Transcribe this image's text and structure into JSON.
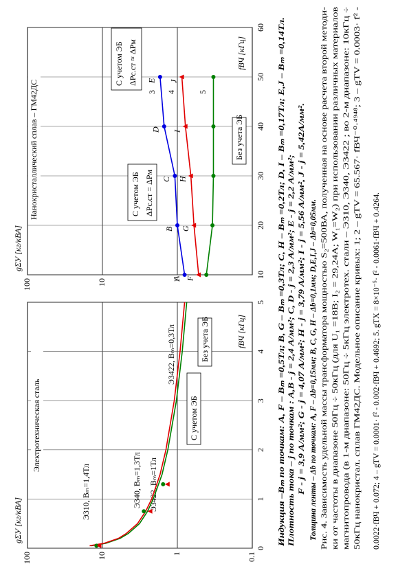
{
  "chart_data": [
    {
      "type": "line",
      "title": "Электротехническая сталь",
      "y_label": "gΣУ [кг/кВА]",
      "x_label": "fВЧ [кГц]",
      "xlim": [
        0,
        5
      ],
      "xticks": [
        0,
        1,
        2,
        3,
        4,
        5
      ],
      "ylim": [
        0.1,
        100
      ],
      "yticks": [
        0.1,
        1,
        10,
        100
      ],
      "log_y": true,
      "grid": true,
      "series": [
        {
          "color": "#008000",
          "line": true,
          "marker": "none",
          "x": [
            0.05,
            0.1,
            0.2,
            0.3,
            0.5,
            0.75,
            1,
            1.5,
            2,
            3,
            4,
            5
          ],
          "values": [
            14.0,
            9.0,
            5.8,
            4.5,
            3.2,
            2.5,
            2.1,
            1.6,
            1.34,
            1.03,
            0.86,
            0.75
          ]
        },
        {
          "color": "#e00000",
          "line": true,
          "marker": "none",
          "x": [
            0.05,
            0.1,
            0.2,
            0.3,
            0.5,
            0.75,
            1,
            1.5,
            2,
            3,
            4,
            5
          ],
          "values": [
            14.8,
            9.5,
            6.1,
            4.8,
            3.4,
            2.65,
            2.2,
            1.7,
            1.42,
            1.1,
            0.92,
            0.8
          ]
        },
        {
          "color": "#008000",
          "line": false,
          "marker": "circle",
          "x": [
            0.05,
            0.75,
            1.3
          ],
          "values": [
            12,
            2.8,
            1.55
          ]
        },
        {
          "color": "#e00000",
          "line": false,
          "marker": "triangle",
          "x": [
            0.05,
            0.75,
            1.3
          ],
          "values": [
            11,
            2.3,
            1.35
          ]
        }
      ],
      "annotations": [
        "Э310, Bₘ=1,4Тл",
        "Э340, Bₘ=1,3Тл",
        "Э3422, Bₘ=1Тл",
        "Э3422, Bₘ=0,3Тл",
        "С учетом ЭБ",
        "Без учета ЭБ"
      ]
    },
    {
      "type": "line",
      "title": "Нанокристаллический сплав – ГМ42ДС",
      "y_label": "gΣУ [кг/кВА]",
      "x_label": "fВЧ [кГц]",
      "xlim": [
        10,
        60
      ],
      "xticks": [
        10,
        20,
        30,
        40,
        50,
        60
      ],
      "ylim": [
        0.1,
        100
      ],
      "yticks": [
        1,
        10,
        100
      ],
      "log_y": true,
      "grid": true,
      "series": [
        {
          "color": "#0000e0",
          "line": true,
          "marker": "circle",
          "x": [
            10,
            20,
            30,
            40,
            50
          ],
          "values": [
            0.8,
            1.0,
            1.08,
            1.5,
            1.7
          ],
          "point_labels": [
            "A",
            "B",
            "C",
            "D",
            "E"
          ]
        },
        {
          "color": "#e00000",
          "line": true,
          "marker": "triangle",
          "x": [
            10,
            20,
            30,
            40,
            50
          ],
          "values": [
            0.52,
            0.6,
            0.66,
            0.78,
            0.87
          ],
          "point_labels": [
            "F",
            "G",
            "H",
            "I",
            "J"
          ]
        },
        {
          "color": "#008000",
          "line": true,
          "marker": "circle",
          "x": [
            10,
            20,
            30,
            40,
            50
          ],
          "values": [
            0.41,
            0.34,
            0.33,
            0.33,
            0.33
          ]
        }
      ],
      "annotations": [
        "С учетом ЭБ",
        "ΔPс.ст ≈ ΔPм",
        "С учетом ЭБ",
        "ΔPс.ст = ΔPм",
        "Без учета ЭБ",
        "3",
        "4",
        "5"
      ]
    }
  ],
  "caption": {
    "lines": [
      "Индукция –Bₘ по точкам: A, F – Bₘ =0,5Тл;  B, G – Bₘ =0,3Тл; C, H – Bₘ =0,2Тл; D, I – Bₘ =0,17Тл; E,J – Bₘ =0,14Тл.",
      "Плотность тока – j по точкам : A,B - j = 2,4 А/мм²; C, D - j = 2,3 А/мм²; E - j = 2,2 А/мм²;",
      "F - j = 3,9 А/мм²; G - j = 4,07 А/мм²; H - j = 3,79 А/мм²; I - j = 5,56 А/мм², J - j = 5,42А/мм².",
      "Толщина ленты – Δb по точкам: A, F – Δb=0,15мм; B, C, G, H – Δb=0,1мм; D,E,I,J – Δb=0,05мм.",
      "Рис. 4. Зависимость удельной массы трансформатора мощностью S₂=500ВА, полученная на основе расчета второй методи-",
      "ки от частоты в диапазоне 50Гц ÷ 50кГц (для U₁ =18В; I₂ = 29,24А; W₁=W₂) при использовании различных материалов",
      "магнитопровода (в 1-м диапазоне: 50Гц ÷ 5кГц  электротех. стали – Э310, Э340, Э3422 ;  во 2-м диапазоне: 10кГц ÷",
      "50кГц нанокристал. сплав ГМ42ДС.  Модельное описание кривых:  1; 2 – gTV = 65.567· fВЧ⁻⁰·⁴⁹⁴⁸; 3 – gTV = 0.0003· f² -",
      "0.0022·fВЧ + 0.072; 4 – gTV = 0.0001· f² - 0.002·fВЧ + 0.4692; 5. gTX = 8×10⁻⁵· f² - 0.0061·fВЧ + 0.4264."
    ]
  }
}
